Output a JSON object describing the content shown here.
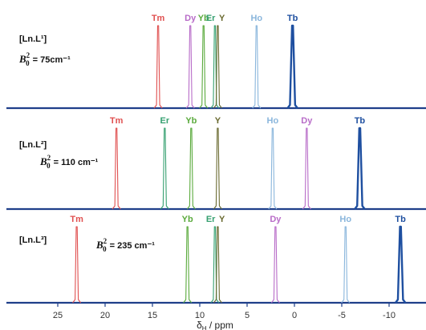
{
  "chart_data": {
    "type": "line",
    "xlabel": "δH / ppm",
    "xlabel_main": "δ",
    "xlabel_sub": "H",
    "xlabel_rest": " / ppm",
    "x_reversed": true,
    "xlim": [
      30,
      -12
    ],
    "xticks": [
      25,
      20,
      15,
      10,
      5,
      0,
      -5,
      -10
    ],
    "grid": false,
    "colors": {
      "Tm": "#e05050",
      "Dy": "#b86cc8",
      "Yb": "#5aaa3c",
      "Er": "#36a070",
      "Y": "#6a6a30",
      "Ho": "#8ab6dc",
      "Tb": "#1e4fa0",
      "axis": "#1f3f8a"
    },
    "panels": [
      {
        "complex": "[Ln.L¹]",
        "param_symbol": "B",
        "param_sup": "2",
        "param_sub": "0",
        "param_value": "= 75cm⁻¹",
        "peaks": [
          {
            "ion": "Tm",
            "shift": 14.4
          },
          {
            "ion": "Dy",
            "shift": 11.0
          },
          {
            "ion": "Yb",
            "shift": 9.6
          },
          {
            "ion": "Er",
            "shift": 8.4
          },
          {
            "ion": "Y",
            "shift": 8.1
          },
          {
            "ion": "Ho",
            "shift": 4.0
          },
          {
            "ion": "Tb",
            "shift": 0.2
          }
        ]
      },
      {
        "complex": "[Ln.L²]",
        "param_symbol": "B",
        "param_sup": "2",
        "param_sub": "0",
        "param_value": "= 110 cm⁻¹",
        "peaks": [
          {
            "ion": "Tm",
            "shift": 18.8
          },
          {
            "ion": "Er",
            "shift": 13.7
          },
          {
            "ion": "Yb",
            "shift": 10.9
          },
          {
            "ion": "Y",
            "shift": 8.1
          },
          {
            "ion": "Ho",
            "shift": 2.3
          },
          {
            "ion": "Dy",
            "shift": -1.3
          },
          {
            "ion": "Tb",
            "shift": -6.9
          }
        ]
      },
      {
        "complex": "[Ln.L³]",
        "param_symbol": "B",
        "param_sup": "2",
        "param_sub": "0",
        "param_value": "= 235 cm⁻¹",
        "peaks": [
          {
            "ion": "Tm",
            "shift": 23.0
          },
          {
            "ion": "Yb",
            "shift": 11.3
          },
          {
            "ion": "Er",
            "shift": 8.4
          },
          {
            "ion": "Y",
            "shift": 8.1
          },
          {
            "ion": "Dy",
            "shift": 2.0
          },
          {
            "ion": "Ho",
            "shift": -5.4
          },
          {
            "ion": "Tb",
            "shift": -11.2
          }
        ]
      }
    ]
  }
}
